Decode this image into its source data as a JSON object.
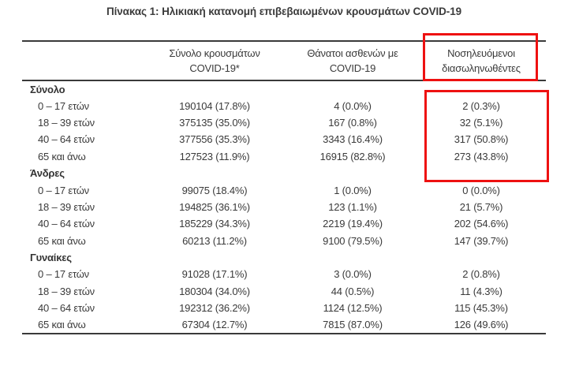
{
  "page": {
    "title": "Πίνακας 1: Ηλικιακή κατανομή επιβεβαιωμένων κρουσμάτων COVID-19"
  },
  "colors": {
    "highlight": "#ee1111",
    "text": "#3a3a3a"
  },
  "table": {
    "header": {
      "col_cases_line1": "Σύνολο κρουσμάτων",
      "col_cases_line2": "COVID-19*",
      "col_deaths_line1": "Θάνατοι ασθενών με",
      "col_deaths_line2": "COVID-19",
      "col_intubated_line1": "Νοσηλευόμενοι",
      "col_intubated_line2": "διασωληνωθέντες"
    },
    "sections": [
      {
        "label": "Σύνολο",
        "rows": [
          {
            "age": "0 – 17 ετών",
            "cases": "190104 (17.8%)",
            "deaths": "4 (0.0%)",
            "intubated": "2 (0.3%)"
          },
          {
            "age": "18 – 39 ετών",
            "cases": "375135 (35.0%)",
            "deaths": "167 (0.8%)",
            "intubated": "32 (5.1%)"
          },
          {
            "age": "40 – 64 ετών",
            "cases": "377556 (35.3%)",
            "deaths": "3343 (16.4%)",
            "intubated": "317 (50.8%)"
          },
          {
            "age": "65 και άνω",
            "cases": "127523 (11.9%)",
            "deaths": "16915 (82.8%)",
            "intubated": "273 (43.8%)"
          }
        ]
      },
      {
        "label": "Άνδρες",
        "rows": [
          {
            "age": "0 – 17 ετών",
            "cases": "99075 (18.4%)",
            "deaths": "1 (0.0%)",
            "intubated": "0 (0.0%)"
          },
          {
            "age": "18 – 39 ετών",
            "cases": "194825 (36.1%)",
            "deaths": "123 (1.1%)",
            "intubated": "21 (5.7%)"
          },
          {
            "age": "40 – 64 ετών",
            "cases": "185229 (34.3%)",
            "deaths": "2219 (19.4%)",
            "intubated": "202 (54.6%)"
          },
          {
            "age": "65 και άνω",
            "cases": "60213 (11.2%)",
            "deaths": "9100 (79.5%)",
            "intubated": "147 (39.7%)"
          }
        ]
      },
      {
        "label": "Γυναίκες",
        "rows": [
          {
            "age": "0 – 17 ετών",
            "cases": "91028 (17.1%)",
            "deaths": "3 (0.0%)",
            "intubated": "2 (0.8%)"
          },
          {
            "age": "18 – 39 ετών",
            "cases": "180304 (34.0%)",
            "deaths": "44 (0.5%)",
            "intubated": "11 (4.3%)"
          },
          {
            "age": "40 – 64 ετών",
            "cases": "192312 (36.2%)",
            "deaths": "1124 (12.5%)",
            "intubated": "115 (45.3%)"
          },
          {
            "age": "65 και άνω",
            "cases": "67304 (12.7%)",
            "deaths": "7815 (87.0%)",
            "intubated": "126 (49.6%)"
          }
        ]
      }
    ]
  }
}
